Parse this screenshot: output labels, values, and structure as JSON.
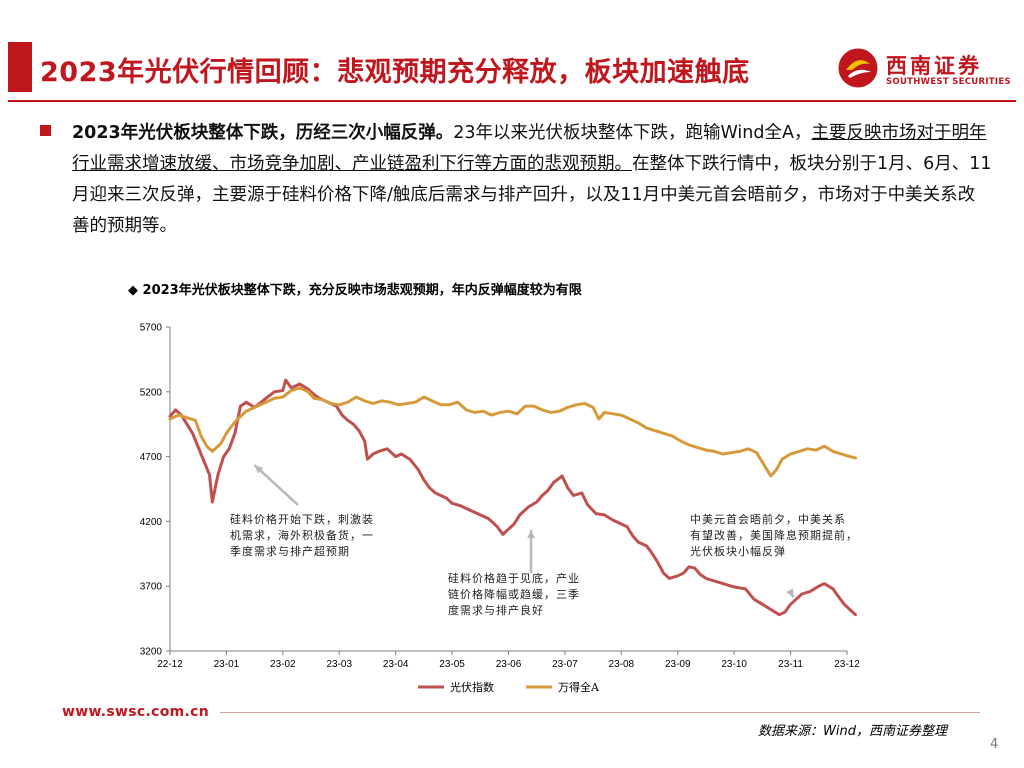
{
  "header": {
    "title": "2023年光伏行情回顾：悲观预期充分释放，板块加速触底",
    "logo_cn": "西南证券",
    "logo_en": "SOUTHWEST SECURITIES"
  },
  "summary": {
    "bold_lead": "2023年光伏板块整体下跌，历经三次小幅反弹。",
    "text_1": "23年以来光伏板块整体下跌，跑输Wind全A，",
    "underlined": "主要反映市场对于明年行业需求增速放缓、市场竞争加剧、产业链盈利下行等方面的悲观预期。",
    "text_2": "在整体下跌行情中，板块分别于1月、6月、11月迎来三次反弹，主要源于硅料价格下降/触底后需求与排产回升，以及11月中美元首会晤前夕，市场对于中美关系改善的预期等。"
  },
  "chart_title": "◆ 2023年光伏板块整体下跌，充分反映市场悲观预期，年内反弹幅度较为有限",
  "colors": {
    "brand_red": "#c0161d",
    "pv_series": "#c0504d",
    "wind_series": "#d69a3a",
    "axis": "#808080"
  },
  "chart_data": {
    "type": "line",
    "x": [
      "22-12",
      "23-01",
      "23-02",
      "23-03",
      "23-04",
      "23-05",
      "23-06",
      "23-07",
      "23-08",
      "23-09",
      "23-10",
      "23-11",
      "23-12"
    ],
    "ylim": [
      3200,
      5700
    ],
    "yticks": [
      3200,
      3700,
      4200,
      4700,
      5200,
      5700
    ],
    "series": [
      {
        "name": "光伏指数",
        "points": [
          [
            0,
            5010
          ],
          [
            0.1,
            5060
          ],
          [
            0.2,
            5020
          ],
          [
            0.4,
            4880
          ],
          [
            0.55,
            4720
          ],
          [
            0.7,
            4560
          ],
          [
            0.75,
            4350
          ],
          [
            0.85,
            4560
          ],
          [
            0.95,
            4700
          ],
          [
            1.05,
            4760
          ],
          [
            1.15,
            4880
          ],
          [
            1.25,
            5090
          ],
          [
            1.35,
            5120
          ],
          [
            1.5,
            5080
          ],
          [
            1.7,
            5150
          ],
          [
            1.85,
            5200
          ],
          [
            2.0,
            5210
          ],
          [
            2.05,
            5290
          ],
          [
            2.15,
            5230
          ],
          [
            2.3,
            5260
          ],
          [
            2.45,
            5220
          ],
          [
            2.55,
            5180
          ],
          [
            2.65,
            5150
          ],
          [
            2.8,
            5120
          ],
          [
            2.95,
            5090
          ],
          [
            3.05,
            5020
          ],
          [
            3.15,
            4980
          ],
          [
            3.25,
            4950
          ],
          [
            3.35,
            4900
          ],
          [
            3.45,
            4820
          ],
          [
            3.5,
            4680
          ],
          [
            3.6,
            4720
          ],
          [
            3.7,
            4740
          ],
          [
            3.85,
            4760
          ],
          [
            4.0,
            4700
          ],
          [
            4.1,
            4720
          ],
          [
            4.25,
            4680
          ],
          [
            4.4,
            4600
          ],
          [
            4.5,
            4520
          ],
          [
            4.6,
            4460
          ],
          [
            4.7,
            4420
          ],
          [
            4.8,
            4400
          ],
          [
            4.9,
            4380
          ],
          [
            5.0,
            4340
          ],
          [
            5.15,
            4320
          ],
          [
            5.3,
            4290
          ],
          [
            5.5,
            4250
          ],
          [
            5.65,
            4220
          ],
          [
            5.8,
            4160
          ],
          [
            5.9,
            4100
          ],
          [
            6.0,
            4140
          ],
          [
            6.1,
            4180
          ],
          [
            6.2,
            4250
          ],
          [
            6.35,
            4310
          ],
          [
            6.5,
            4350
          ],
          [
            6.6,
            4400
          ],
          [
            6.7,
            4440
          ],
          [
            6.8,
            4500
          ],
          [
            6.95,
            4550
          ],
          [
            7.05,
            4460
          ],
          [
            7.15,
            4400
          ],
          [
            7.3,
            4420
          ],
          [
            7.4,
            4330
          ],
          [
            7.55,
            4260
          ],
          [
            7.7,
            4250
          ],
          [
            7.85,
            4210
          ],
          [
            8.0,
            4180
          ],
          [
            8.1,
            4160
          ],
          [
            8.2,
            4090
          ],
          [
            8.3,
            4040
          ],
          [
            8.45,
            4010
          ],
          [
            8.55,
            3950
          ],
          [
            8.65,
            3880
          ],
          [
            8.75,
            3800
          ],
          [
            8.85,
            3760
          ],
          [
            9.0,
            3780
          ],
          [
            9.1,
            3800
          ],
          [
            9.2,
            3850
          ],
          [
            9.3,
            3840
          ],
          [
            9.4,
            3790
          ],
          [
            9.5,
            3760
          ],
          [
            9.65,
            3740
          ],
          [
            9.8,
            3720
          ],
          [
            9.95,
            3700
          ],
          [
            10.05,
            3690
          ],
          [
            10.2,
            3680
          ],
          [
            10.35,
            3600
          ],
          [
            10.5,
            3560
          ],
          [
            10.65,
            3520
          ],
          [
            10.8,
            3480
          ],
          [
            10.9,
            3500
          ],
          [
            11.0,
            3560
          ],
          [
            11.1,
            3600
          ],
          [
            11.2,
            3640
          ],
          [
            11.35,
            3660
          ],
          [
            11.5,
            3700
          ],
          [
            11.6,
            3720
          ],
          [
            11.75,
            3680
          ],
          [
            11.85,
            3620
          ],
          [
            11.95,
            3560
          ],
          [
            12.05,
            3520
          ],
          [
            12.15,
            3480
          ]
        ]
      },
      {
        "name": "万得全A",
        "points": [
          [
            0,
            4990
          ],
          [
            0.15,
            5020
          ],
          [
            0.3,
            5000
          ],
          [
            0.45,
            4980
          ],
          [
            0.55,
            4860
          ],
          [
            0.65,
            4780
          ],
          [
            0.75,
            4740
          ],
          [
            0.9,
            4800
          ],
          [
            1.0,
            4880
          ],
          [
            1.1,
            4940
          ],
          [
            1.2,
            4990
          ],
          [
            1.35,
            5050
          ],
          [
            1.5,
            5080
          ],
          [
            1.7,
            5120
          ],
          [
            1.85,
            5150
          ],
          [
            2.0,
            5160
          ],
          [
            2.15,
            5210
          ],
          [
            2.3,
            5230
          ],
          [
            2.45,
            5200
          ],
          [
            2.55,
            5150
          ],
          [
            2.7,
            5140
          ],
          [
            2.85,
            5110
          ],
          [
            3.0,
            5100
          ],
          [
            3.15,
            5120
          ],
          [
            3.3,
            5160
          ],
          [
            3.45,
            5130
          ],
          [
            3.6,
            5110
          ],
          [
            3.75,
            5130
          ],
          [
            3.9,
            5120
          ],
          [
            4.05,
            5100
          ],
          [
            4.2,
            5110
          ],
          [
            4.35,
            5120
          ],
          [
            4.5,
            5160
          ],
          [
            4.65,
            5130
          ],
          [
            4.8,
            5100
          ],
          [
            4.95,
            5100
          ],
          [
            5.1,
            5120
          ],
          [
            5.25,
            5060
          ],
          [
            5.4,
            5040
          ],
          [
            5.55,
            5050
          ],
          [
            5.7,
            5020
          ],
          [
            5.85,
            5040
          ],
          [
            6.0,
            5050
          ],
          [
            6.15,
            5030
          ],
          [
            6.3,
            5090
          ],
          [
            6.45,
            5090
          ],
          [
            6.6,
            5060
          ],
          [
            6.75,
            5040
          ],
          [
            6.9,
            5050
          ],
          [
            7.05,
            5080
          ],
          [
            7.2,
            5100
          ],
          [
            7.35,
            5110
          ],
          [
            7.5,
            5080
          ],
          [
            7.6,
            4990
          ],
          [
            7.7,
            5040
          ],
          [
            7.85,
            5030
          ],
          [
            8.0,
            5020
          ],
          [
            8.15,
            4990
          ],
          [
            8.3,
            4960
          ],
          [
            8.45,
            4920
          ],
          [
            8.6,
            4900
          ],
          [
            8.75,
            4880
          ],
          [
            8.9,
            4860
          ],
          [
            9.05,
            4820
          ],
          [
            9.2,
            4790
          ],
          [
            9.35,
            4770
          ],
          [
            9.5,
            4750
          ],
          [
            9.65,
            4740
          ],
          [
            9.8,
            4720
          ],
          [
            9.95,
            4730
          ],
          [
            10.1,
            4740
          ],
          [
            10.25,
            4760
          ],
          [
            10.4,
            4730
          ],
          [
            10.55,
            4620
          ],
          [
            10.65,
            4550
          ],
          [
            10.75,
            4600
          ],
          [
            10.85,
            4680
          ],
          [
            11.0,
            4720
          ],
          [
            11.15,
            4740
          ],
          [
            11.3,
            4760
          ],
          [
            11.45,
            4750
          ],
          [
            11.6,
            4780
          ],
          [
            11.75,
            4740
          ],
          [
            11.9,
            4720
          ],
          [
            12.05,
            4700
          ],
          [
            12.15,
            4690
          ]
        ]
      }
    ],
    "legend": [
      "光伏指数",
      "万得全A"
    ],
    "legend_position": "bottom",
    "annotations": [
      {
        "text": [
          "硅料价格开始下跌，刺激装",
          "机需求，海外积极备货，一",
          "季度需求与排产超预期"
        ],
        "target": [
          1.5,
          4680
        ]
      },
      {
        "text": [
          "硅料价格趋于见底，产业",
          "链价格降幅或趋缓，三季",
          "度需求与排产良好"
        ],
        "target": [
          6.4,
          4180
        ]
      },
      {
        "text": [
          "中美元首会晤前夕，中美关系",
          "有望改善，美国降息预期提前，",
          "光伏板块小幅反弹"
        ],
        "target": [
          11.05,
          3660
        ]
      }
    ],
    "grid": false
  },
  "footer": {
    "url": "www.swsc.com.cn",
    "source": "数据来源：Wind，西南证券整理",
    "page": "4"
  }
}
